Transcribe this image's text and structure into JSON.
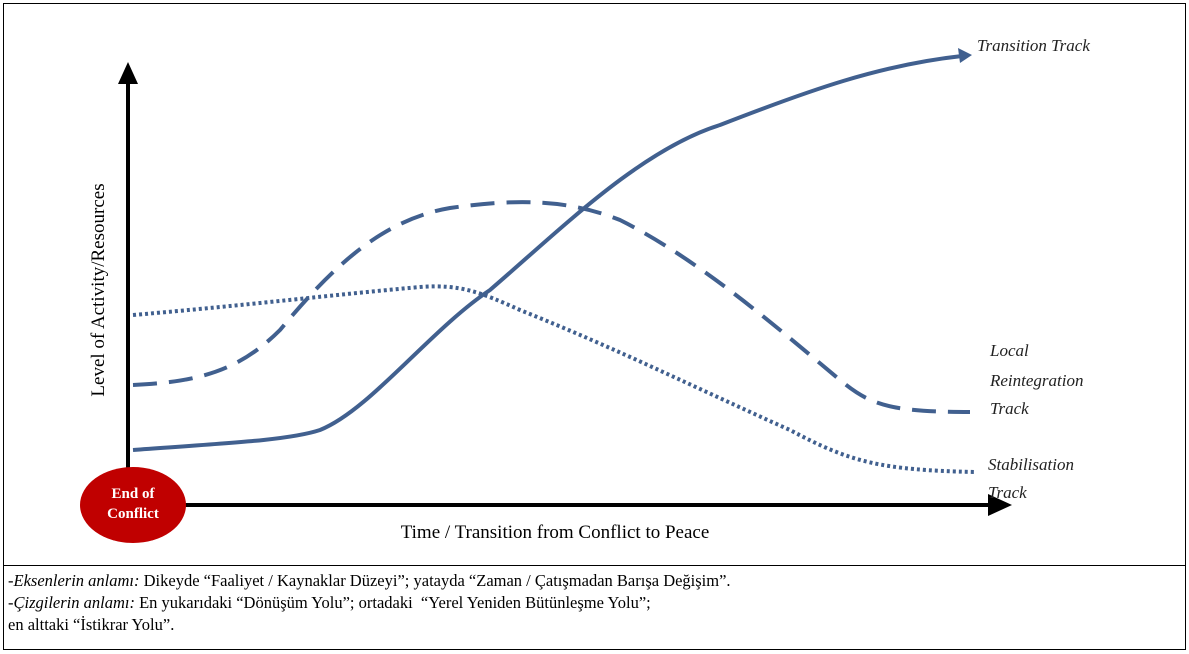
{
  "diagram": {
    "y_axis_label": "Level of Activity/Resources",
    "x_axis_label": "Time / Transition from Conflict to Peace",
    "origin_label": [
      "End of",
      "Conflict"
    ],
    "tracks": [
      {
        "lines": [
          "Transition Track"
        ]
      },
      {
        "lines": [
          "Local",
          "Reintegration",
          "Track"
        ]
      },
      {
        "lines": [
          "Stabilisation",
          "Track"
        ]
      }
    ]
  },
  "caption": [
    {
      "lead": "-",
      "em": "Eksenlerin anlamı:",
      "text": "Dikeyde “Faaliyet / Kaynaklar Düzeyi”; yatayda “Zaman / Çatışmadan Barışa Değişim”."
    },
    {
      "lead": "-",
      "em": "Çizgilerin anlamı:",
      "text": "En yukarıdaki “Dönüşüm Yolu”; ortadaki  “Yerel Yeniden Bütünleşme Yolu”;"
    },
    {
      "text": "en alttaki “İstikrar Yolu”."
    }
  ]
}
